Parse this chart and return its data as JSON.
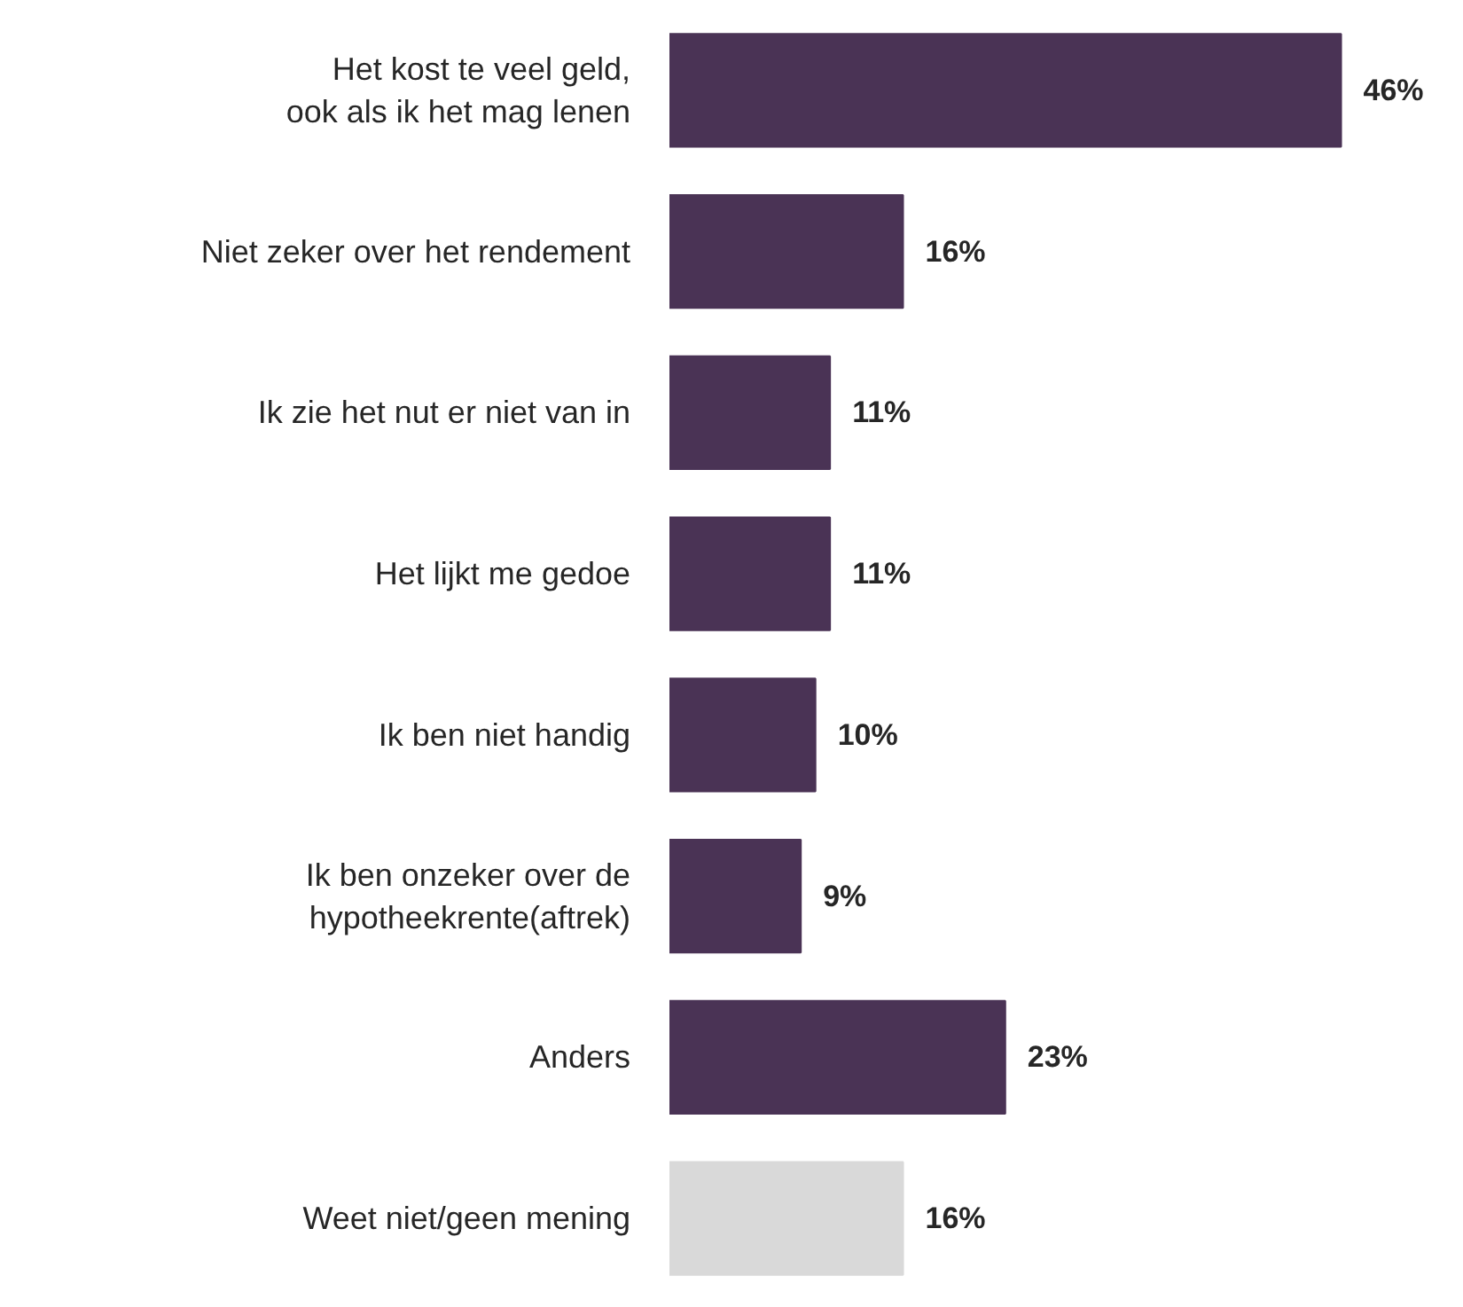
{
  "chart_data": {
    "type": "bar",
    "orientation": "horizontal",
    "categories": [
      "Het kost te veel geld,\nook als ik het mag lenen",
      "Niet zeker over het rendement",
      "Ik zie het nut er niet van in",
      "Het lijkt me gedoe",
      "Ik ben niet handig",
      "Ik ben onzeker over de\nhypotheekrente(aftrek)",
      "Anders",
      "Weet niet/geen mening"
    ],
    "values": [
      46,
      16,
      11,
      11,
      10,
      9,
      23,
      16
    ],
    "value_labels": [
      "46%",
      "16%",
      "11%",
      "11%",
      "10%",
      "9%",
      "23%",
      "16%"
    ],
    "colors": [
      "#4a3355",
      "#4a3355",
      "#4a3355",
      "#4a3355",
      "#4a3355",
      "#4a3355",
      "#4a3355",
      "#d9d9d9"
    ]
  }
}
